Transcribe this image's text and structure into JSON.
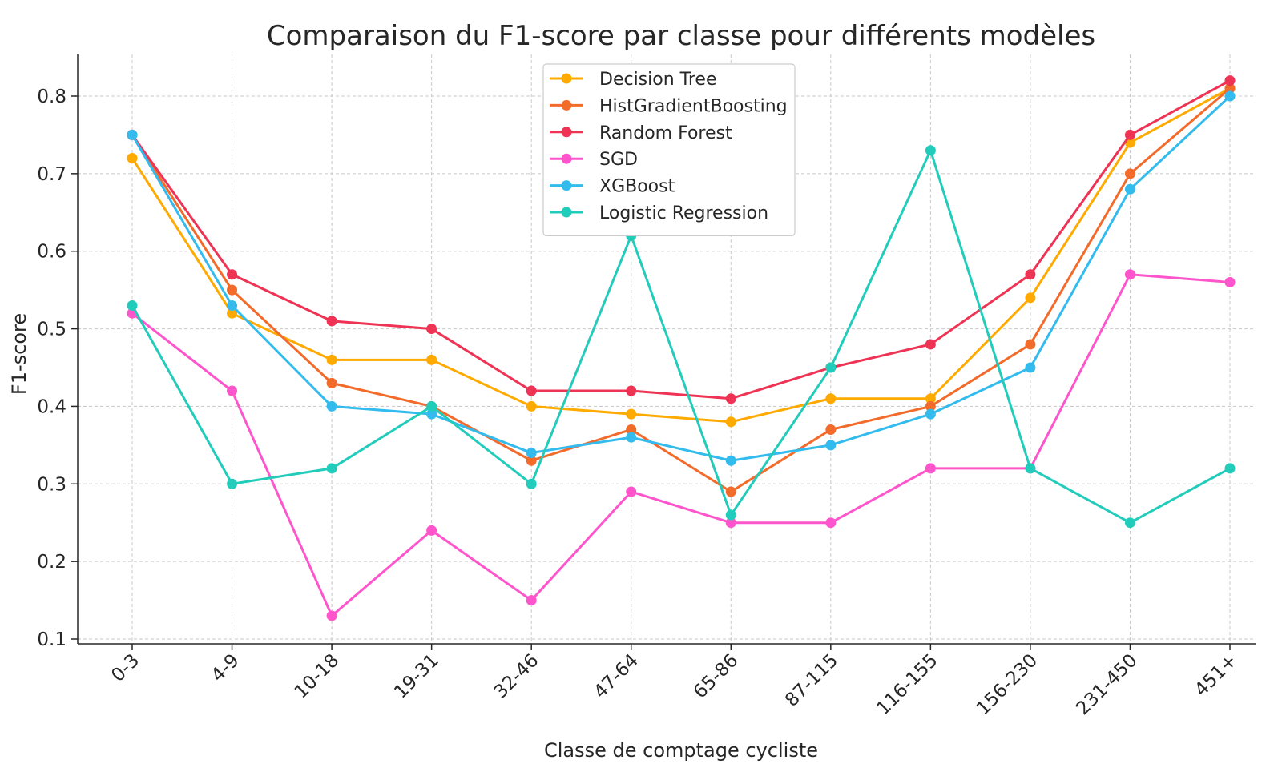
{
  "chart_data": {
    "type": "line",
    "title": "Comparaison du F1-score par classe pour différents modèles",
    "xlabel": "Classe de comptage cycliste",
    "ylabel": "F1-score",
    "categories": [
      "0-3",
      "4-9",
      "10-18",
      "19-31",
      "32-46",
      "47-64",
      "65-86",
      "87-115",
      "116-155",
      "156-230",
      "231-450",
      "451+"
    ],
    "ylim": [
      0.1,
      0.85
    ],
    "yticks": [
      0.1,
      0.2,
      0.3,
      0.4,
      0.5,
      0.6,
      0.7,
      0.8
    ],
    "ytick_labels": [
      "0.1",
      "0.2",
      "0.3",
      "0.4",
      "0.5",
      "0.6",
      "0.7",
      "0.8"
    ],
    "grid": true,
    "legend_position": "top-center",
    "series": [
      {
        "name": "Decision Tree",
        "color": "#FFAA00",
        "values": [
          0.72,
          0.52,
          0.46,
          0.46,
          0.4,
          0.39,
          0.38,
          0.41,
          0.41,
          0.54,
          0.74,
          0.81
        ]
      },
      {
        "name": "HistGradientBoosting",
        "color": "#F26B2A",
        "values": [
          0.75,
          0.55,
          0.43,
          0.4,
          0.33,
          0.37,
          0.29,
          0.37,
          0.4,
          0.48,
          0.7,
          0.81
        ]
      },
      {
        "name": "Random Forest",
        "color": "#EE3355",
        "values": [
          0.75,
          0.57,
          0.51,
          0.5,
          0.42,
          0.42,
          0.41,
          0.45,
          0.48,
          0.57,
          0.75,
          0.82
        ]
      },
      {
        "name": "SGD",
        "color": "#FF55CC",
        "values": [
          0.52,
          0.42,
          0.13,
          0.24,
          0.15,
          0.29,
          0.25,
          0.25,
          0.32,
          0.32,
          0.57,
          0.56
        ]
      },
      {
        "name": "XGBoost",
        "color": "#33BBEE",
        "values": [
          0.75,
          0.53,
          0.4,
          0.39,
          0.34,
          0.36,
          0.33,
          0.35,
          0.39,
          0.45,
          0.68,
          0.8
        ]
      },
      {
        "name": "Logistic Regression",
        "color": "#22CCBB",
        "values": [
          0.53,
          0.3,
          0.32,
          0.4,
          0.3,
          0.62,
          0.26,
          0.45,
          0.73,
          0.32,
          0.25,
          0.32
        ]
      }
    ]
  }
}
